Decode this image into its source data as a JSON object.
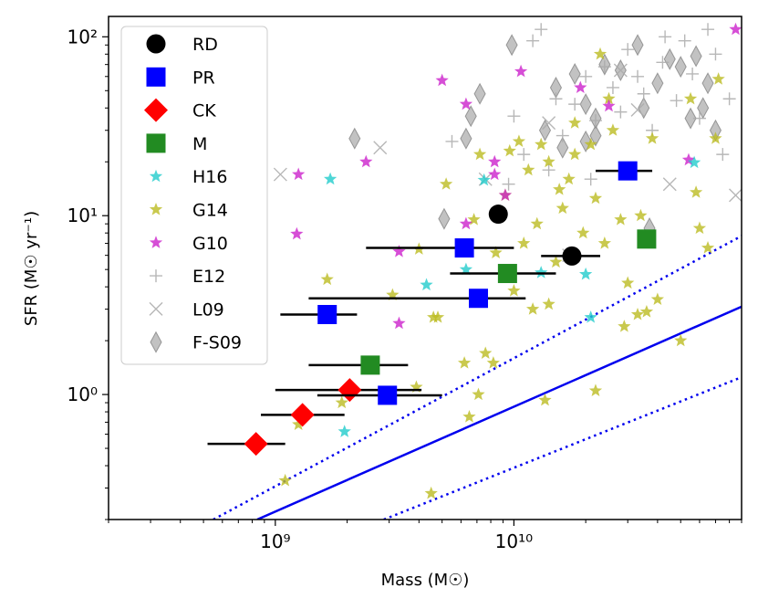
{
  "chart_data": {
    "type": "scatter",
    "xscale": "log",
    "yscale": "log",
    "xlim": [
      200000000,
      90000000000
    ],
    "ylim": [
      0.2,
      130
    ],
    "xlabel": "Mass (M☉)",
    "ylabel": "SFR (M☉ yr⁻¹)",
    "xticks": [
      {
        "value": 1000000000,
        "label": "10⁹"
      },
      {
        "value": 10000000000,
        "label": "10¹⁰"
      }
    ],
    "yticks": [
      {
        "value": 1,
        "label": "10⁰"
      },
      {
        "value": 10,
        "label": "10¹"
      },
      {
        "value": 100,
        "label": "10²"
      }
    ],
    "legend_position": "top-left",
    "lines": [
      {
        "name": "main-sequence",
        "style": "solid",
        "color": "#0000ee",
        "x": [
          840000000,
          90000000000
        ],
        "y": [
          0.2,
          3.1
        ]
      },
      {
        "name": "main-sequence-upper",
        "style": "dotted",
        "color": "#0000ee",
        "x": [
          550000000,
          90000000000
        ],
        "y": [
          0.2,
          7.7
        ]
      },
      {
        "name": "main-sequence-lower",
        "style": "dotted",
        "color": "#0000ee",
        "x": [
          2850000000,
          90000000000
        ],
        "y": [
          0.2,
          1.25
        ]
      }
    ],
    "series": [
      {
        "name": "RD",
        "marker": "circle",
        "color": "#000000",
        "points": [
          [
            8600000000,
            10.2
          ],
          [
            17500000000,
            5.95
          ]
        ],
        "xerr": [
          [
            8600000000,
            8600000000
          ],
          [
            13000000000,
            23000000000
          ]
        ]
      },
      {
        "name": "PR",
        "marker": "square",
        "color": "#0000ff",
        "points": [
          [
            30000000000,
            17.8
          ],
          [
            6200000000,
            6.6
          ],
          [
            7100000000,
            3.45
          ],
          [
            1650000000,
            2.8
          ],
          [
            2950000000,
            0.99
          ]
        ],
        "xerr": [
          [
            22000000000,
            38000000000
          ],
          [
            2400000000,
            10000000000
          ],
          [
            1380000000,
            11200000000
          ],
          [
            1050000000,
            2200000000
          ],
          [
            1500000000,
            5000000000
          ]
        ]
      },
      {
        "name": "CK",
        "marker": "diamond",
        "color": "#ff0000",
        "points": [
          [
            2050000000,
            1.06
          ],
          [
            1300000000,
            0.77
          ],
          [
            830000000,
            0.53
          ]
        ],
        "xerr": [
          [
            1000000000,
            4100000000
          ],
          [
            870000000,
            1950000000
          ],
          [
            520000000,
            1100000000
          ]
        ]
      },
      {
        "name": "M",
        "marker": "square",
        "color": "#228b22",
        "points": [
          [
            2500000000,
            1.46
          ],
          [
            9400000000,
            4.75
          ],
          [
            36000000000,
            7.4
          ]
        ],
        "xerr": [
          [
            1380000000,
            3600000000
          ],
          [
            5400000000,
            15000000000
          ],
          [
            36000000000,
            36000000000
          ]
        ]
      },
      {
        "name": "H16",
        "marker": "star",
        "color": "#22cccc",
        "points": [
          [
            1700000000,
            16
          ],
          [
            7500000000,
            15.8
          ],
          [
            6300000000,
            5.0
          ],
          [
            4300000000,
            4.1
          ],
          [
            13000000000,
            4.8
          ],
          [
            20000000000,
            4.7
          ],
          [
            21000000000,
            2.7
          ],
          [
            1950000000,
            0.62
          ],
          [
            57000000000,
            19.8
          ]
        ]
      },
      {
        "name": "G14",
        "marker": "star",
        "color": "#bcbc22",
        "points": [
          [
            1100000000,
            0.33
          ],
          [
            4500000000,
            0.28
          ],
          [
            1250000000,
            0.68
          ],
          [
            3900000000,
            1.1
          ],
          [
            1900000000,
            0.9
          ],
          [
            6500000000,
            0.75
          ],
          [
            7600000000,
            1.7
          ],
          [
            7100000000,
            1.0
          ],
          [
            8200000000,
            1.5
          ],
          [
            12000000000,
            3.0
          ],
          [
            13500000000,
            0.93
          ],
          [
            22000000000,
            1.05
          ],
          [
            4000000000,
            6.5
          ],
          [
            3100000000,
            3.6
          ],
          [
            4600000000,
            2.7
          ],
          [
            1650000000,
            4.4
          ],
          [
            6200000000,
            1.5
          ],
          [
            5200000000,
            15.0
          ],
          [
            7200000000,
            22.0
          ],
          [
            10500000000,
            26.0
          ],
          [
            9600000000,
            23.0
          ],
          [
            11500000000,
            18.0
          ],
          [
            14000000000,
            20.0
          ],
          [
            17000000000,
            16.0
          ],
          [
            18000000000,
            22.0
          ],
          [
            21000000000,
            25.0
          ],
          [
            25000000000,
            45.0
          ],
          [
            23000000000,
            80.0
          ],
          [
            26000000000,
            30.0
          ],
          [
            28000000000,
            9.5
          ],
          [
            30000000000,
            4.2
          ],
          [
            29000000000,
            2.4
          ],
          [
            34000000000,
            10.0
          ],
          [
            36000000000,
            2.9
          ],
          [
            40000000000,
            3.4
          ],
          [
            38000000000,
            27.0
          ],
          [
            50000000000,
            2.0
          ],
          [
            55000000000,
            45.0
          ],
          [
            58000000000,
            13.5
          ],
          [
            65000000000,
            6.6
          ],
          [
            70000000000,
            27.0
          ],
          [
            72000000000,
            58.0
          ],
          [
            60000000000,
            8.5
          ],
          [
            15500000000,
            14.0
          ],
          [
            9200000000,
            13.0
          ],
          [
            12500000000,
            9.0
          ],
          [
            8400000000,
            6.2
          ],
          [
            6800000000,
            9.5
          ],
          [
            15000000000,
            5.5
          ],
          [
            19500000000,
            8.0
          ],
          [
            14000000000,
            3.2
          ],
          [
            11000000000,
            7.0
          ],
          [
            4800000000,
            2.7
          ],
          [
            10000000000,
            3.8
          ],
          [
            16000000000,
            11.0
          ],
          [
            22000000000,
            12.5
          ],
          [
            33000000000,
            2.8
          ],
          [
            24000000000,
            7.0
          ],
          [
            13000000000,
            25.0
          ],
          [
            18000000000,
            33.0
          ]
        ]
      },
      {
        "name": "G10",
        "marker": "star",
        "color": "#cc22cc",
        "points": [
          [
            1250000000,
            17.0
          ],
          [
            1230000000,
            7.9
          ],
          [
            2400000000,
            20.0
          ],
          [
            3300000000,
            6.3
          ],
          [
            3300000000,
            2.5
          ],
          [
            5000000000,
            57.0
          ],
          [
            6300000000,
            42.0
          ],
          [
            6300000000,
            9.0
          ],
          [
            8300000000,
            20.0
          ],
          [
            8300000000,
            17.0
          ],
          [
            9200000000,
            13.0
          ],
          [
            10700000000,
            64.0
          ],
          [
            19000000000,
            52.0
          ],
          [
            25000000000,
            41.0
          ],
          [
            54000000000,
            20.5
          ],
          [
            85000000000,
            110.0
          ]
        ]
      },
      {
        "name": "E12",
        "marker": "plus",
        "color": "#aaaaaa",
        "points": [
          [
            5500000000,
            26
          ],
          [
            10000000000,
            36
          ],
          [
            12000000000,
            95
          ],
          [
            13000000000,
            110
          ],
          [
            15000000000,
            45
          ],
          [
            16000000000,
            28
          ],
          [
            18000000000,
            42
          ],
          [
            20000000000,
            60
          ],
          [
            22000000000,
            34
          ],
          [
            24000000000,
            68
          ],
          [
            26000000000,
            52
          ],
          [
            28000000000,
            38
          ],
          [
            30000000000,
            85
          ],
          [
            33000000000,
            60
          ],
          [
            35000000000,
            48
          ],
          [
            38000000000,
            30
          ],
          [
            42000000000,
            72
          ],
          [
            48000000000,
            44
          ],
          [
            52000000000,
            95
          ],
          [
            56000000000,
            62
          ],
          [
            60000000000,
            35
          ],
          [
            65000000000,
            110
          ],
          [
            70000000000,
            80
          ],
          [
            75000000000,
            22
          ],
          [
            80000000000,
            45
          ],
          [
            14000000000,
            18
          ],
          [
            21000000000,
            16
          ],
          [
            11000000000,
            22
          ],
          [
            9500000000,
            15
          ],
          [
            43000000000,
            100
          ]
        ]
      },
      {
        "name": "L09",
        "marker": "x",
        "color": "#aaaaaa",
        "points": [
          [
            1050000000,
            17.0
          ],
          [
            2750000000,
            24.0
          ],
          [
            7600000000,
            16.0
          ],
          [
            17000000000,
            6.0
          ],
          [
            33000000000,
            39.0
          ],
          [
            45000000000,
            15.0
          ],
          [
            85000000000,
            13.0
          ],
          [
            28000000000,
            65.0
          ],
          [
            14000000000,
            33.0
          ]
        ]
      },
      {
        "name": "F-S09",
        "marker": "thin_diamond",
        "color": "#999999",
        "points": [
          [
            2150000000,
            27.0
          ],
          [
            6300000000,
            27.0
          ],
          [
            6600000000,
            36.0
          ],
          [
            7200000000,
            48.0
          ],
          [
            9800000000,
            90.0
          ],
          [
            13500000000,
            30.0
          ],
          [
            15000000000,
            52.0
          ],
          [
            18000000000,
            62.0
          ],
          [
            20000000000,
            42.0
          ],
          [
            22000000000,
            35.0
          ],
          [
            22000000000,
            28.0
          ],
          [
            24000000000,
            70.0
          ],
          [
            28000000000,
            65.0
          ],
          [
            33000000000,
            90.0
          ],
          [
            35000000000,
            40.0
          ],
          [
            40000000000,
            55.0
          ],
          [
            45000000000,
            75.0
          ],
          [
            50000000000,
            68.0
          ],
          [
            55000000000,
            35.0
          ],
          [
            58000000000,
            78.0
          ],
          [
            62000000000,
            40.0
          ],
          [
            65000000000,
            55.0
          ],
          [
            20000000000,
            26.0
          ],
          [
            16000000000,
            24.0
          ],
          [
            5100000000,
            9.6
          ],
          [
            37000000000,
            8.5
          ],
          [
            70000000000,
            30.0
          ]
        ]
      }
    ]
  }
}
